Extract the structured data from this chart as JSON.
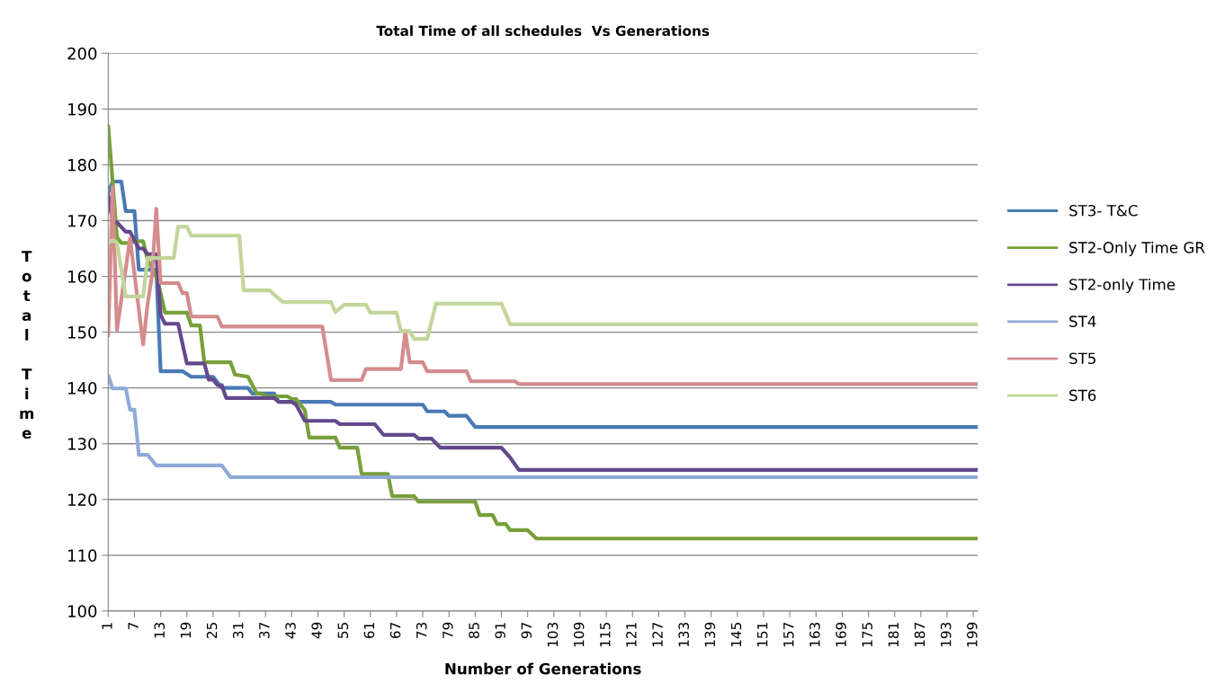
{
  "chart_data": {
    "type": "line",
    "title": "Total Time of all schedules  Vs Generations",
    "xlabel": "Number of Generations",
    "ylabel": "Total Time",
    "xlim": [
      1,
      200
    ],
    "xticks": [
      1,
      7,
      13,
      19,
      25,
      31,
      37,
      43,
      49,
      55,
      61,
      67,
      73,
      79,
      85,
      91,
      97,
      103,
      109,
      115,
      121,
      127,
      133,
      139,
      145,
      151,
      157,
      163,
      169,
      175,
      181,
      187,
      193,
      199
    ],
    "ylim": [
      100,
      200
    ],
    "yticks": [
      100,
      110,
      120,
      130,
      140,
      150,
      160,
      170,
      180,
      190,
      200
    ],
    "grid": "y",
    "legend": "right",
    "marker": "none",
    "line_style": "solid",
    "series": [
      {
        "name": "ST3- T&C",
        "color": "#4a7ab5",
        "x": [
          1,
          2,
          4,
          5,
          7,
          8,
          12,
          13,
          18,
          20,
          25,
          26,
          27,
          33,
          34,
          39,
          40,
          52,
          53,
          73,
          74,
          78,
          79,
          83,
          85,
          200
        ],
        "values": [
          175,
          177,
          177,
          171.7,
          171.7,
          161.2,
          161.2,
          143,
          143,
          142,
          142,
          141,
          140,
          140,
          139,
          139,
          137.5,
          137.5,
          137,
          137,
          135.8,
          135.8,
          135,
          135,
          133,
          133
        ]
      },
      {
        "name": "ST2-Only Time GR",
        "color": "#77a03a",
        "x": [
          1,
          3,
          4,
          6,
          7,
          9,
          10,
          12,
          13,
          14,
          19,
          20,
          22,
          23,
          29,
          30,
          33,
          35,
          36,
          37,
          42,
          43,
          44,
          46,
          47,
          53,
          54,
          58,
          59,
          65,
          66,
          71,
          72,
          85,
          86,
          89,
          90,
          92,
          93,
          97,
          99,
          200
        ],
        "values": [
          187,
          167,
          166,
          166,
          166.3,
          166.3,
          163,
          160,
          157,
          153.5,
          153.5,
          151.2,
          151.2,
          144.6,
          144.6,
          142.4,
          142,
          139,
          139,
          138.5,
          138.5,
          138,
          138,
          136,
          131.1,
          131.1,
          129.3,
          129.3,
          124.6,
          124.6,
          120.6,
          120.6,
          119.6,
          119.6,
          117.2,
          117.2,
          115.6,
          115.6,
          114.5,
          114.5,
          113,
          113
        ]
      },
      {
        "name": "ST2-only Time",
        "color": "#64488c",
        "x": [
          1,
          2,
          3,
          5,
          6,
          7,
          8,
          9,
          10,
          12,
          13,
          14,
          17,
          19,
          23,
          24,
          25,
          26,
          27,
          28,
          39,
          40,
          43,
          44,
          46,
          53,
          54,
          62,
          64,
          71,
          72,
          75,
          77,
          91,
          93,
          95,
          200
        ],
        "values": [
          174.6,
          169.7,
          169.7,
          168,
          168,
          166.5,
          165,
          165,
          164,
          164,
          153.1,
          151.5,
          151.5,
          144.4,
          144.4,
          141.5,
          141.5,
          140.5,
          140.5,
          138.2,
          138.2,
          137.5,
          137.5,
          137,
          134.1,
          134.1,
          133.5,
          133.5,
          131.6,
          131.6,
          130.9,
          130.9,
          129.3,
          129.3,
          127.5,
          125.3,
          125.3
        ]
      },
      {
        "name": "ST4",
        "color": "#8faad6",
        "x": [
          1,
          2,
          5,
          6,
          7,
          8,
          10,
          12,
          27,
          29,
          200
        ],
        "values": [
          142.2,
          139.9,
          139.9,
          136.1,
          136.1,
          128,
          128,
          126.1,
          126.1,
          124,
          124
        ]
      },
      {
        "name": "ST5",
        "color": "#d48c8c",
        "x": [
          1,
          2,
          3,
          6,
          9,
          10,
          11,
          12,
          13,
          17,
          18,
          19,
          20,
          26,
          27,
          50,
          52,
          59,
          60,
          68,
          69,
          70,
          73,
          74,
          83,
          84,
          94,
          95,
          200
        ],
        "values": [
          149.4,
          176,
          150.4,
          166.8,
          147.8,
          155,
          160,
          172.1,
          158.8,
          158.8,
          157,
          157,
          152.8,
          152.8,
          151,
          151,
          141.4,
          141.4,
          143.4,
          143.4,
          150,
          144.6,
          144.6,
          143,
          143,
          141.2,
          141.2,
          140.7,
          140.7
        ]
      },
      {
        "name": "ST6",
        "color": "#c2d69b",
        "x": [
          1,
          2,
          3,
          5,
          9,
          10,
          16,
          17,
          19,
          20,
          31,
          32,
          38,
          39,
          41,
          52,
          53,
          55,
          60,
          61,
          66,
          67,
          68,
          70,
          71,
          74,
          76,
          91,
          93,
          200
        ],
        "values": [
          166,
          166.5,
          166,
          156.4,
          156.4,
          163.3,
          163.3,
          168.9,
          168.9,
          167.3,
          167.3,
          157.5,
          157.5,
          156.7,
          155.4,
          155.4,
          153.6,
          154.9,
          154.9,
          153.5,
          153.5,
          153.5,
          150.2,
          150.2,
          148.8,
          148.8,
          155.1,
          155.1,
          151.4,
          151.4
        ]
      }
    ]
  }
}
